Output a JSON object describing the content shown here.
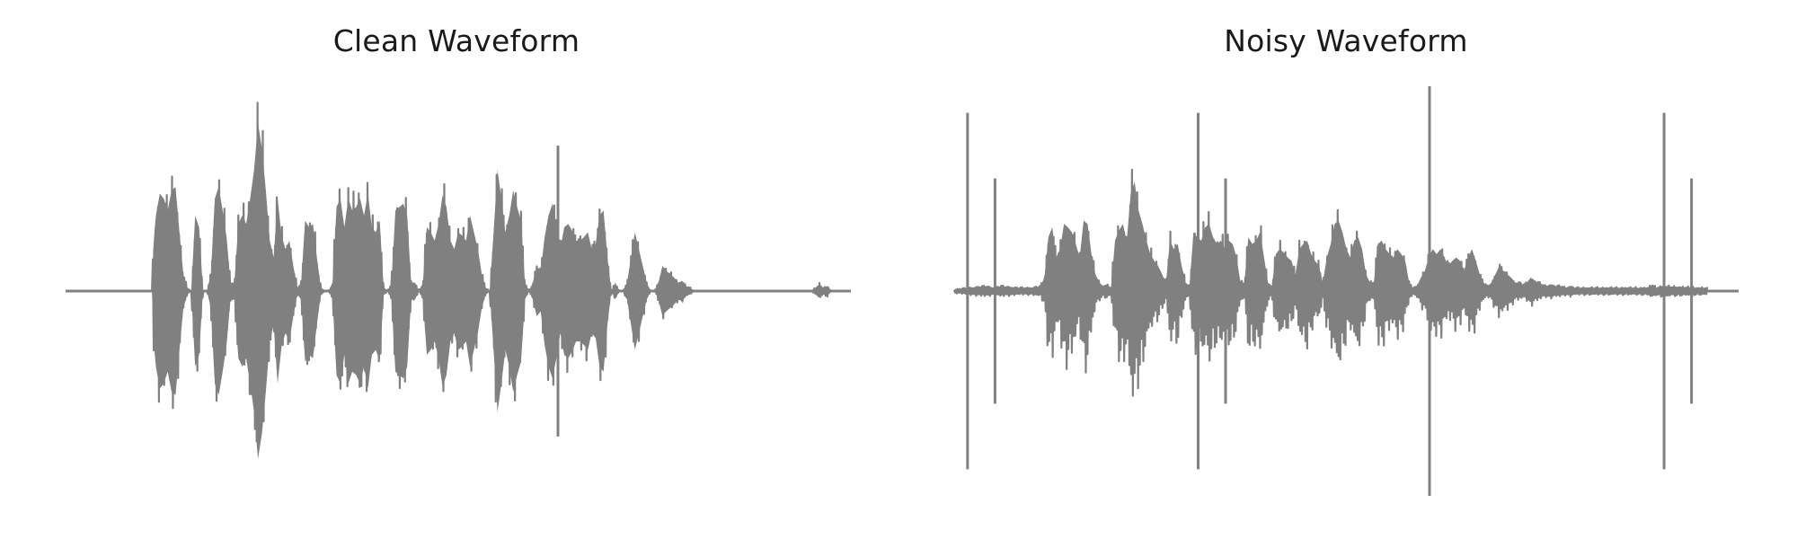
{
  "chart_data": [
    {
      "type": "line",
      "title": "Clean Waveform",
      "xlabel": "",
      "ylabel": "",
      "axes_visible": false,
      "grid": false,
      "line_color": "#808080",
      "ylim": [
        -1.0,
        1.0
      ],
      "envelope": {
        "x": [
          0.0,
          0.11,
          0.112,
          0.115,
          0.12,
          0.125,
          0.13,
          0.135,
          0.14,
          0.145,
          0.15,
          0.155,
          0.16,
          0.165,
          0.17,
          0.175,
          0.18,
          0.185,
          0.19,
          0.195,
          0.2,
          0.205,
          0.21,
          0.215,
          0.22,
          0.225,
          0.23,
          0.235,
          0.24,
          0.245,
          0.25,
          0.255,
          0.26,
          0.265,
          0.27,
          0.275,
          0.28,
          0.285,
          0.29,
          0.295,
          0.3,
          0.305,
          0.31,
          0.315,
          0.32,
          0.325,
          0.33,
          0.335,
          0.34,
          0.345,
          0.35,
          0.355,
          0.36,
          0.365,
          0.37,
          0.375,
          0.38,
          0.385,
          0.39,
          0.395,
          0.4,
          0.405,
          0.41,
          0.415,
          0.42,
          0.425,
          0.43,
          0.435,
          0.44,
          0.445,
          0.45,
          0.455,
          0.46,
          0.465,
          0.47,
          0.475,
          0.48,
          0.485,
          0.49,
          0.495,
          0.5,
          0.505,
          0.51,
          0.515,
          0.52,
          0.525,
          0.53,
          0.535,
          0.54,
          0.545,
          0.55,
          0.555,
          0.56,
          0.565,
          0.57,
          0.575,
          0.58,
          0.585,
          0.59,
          0.595,
          0.6,
          0.605,
          0.61,
          0.615,
          0.62,
          0.625,
          0.63,
          0.635,
          0.64,
          0.645,
          0.65,
          0.655,
          0.66,
          0.665,
          0.67,
          0.675,
          0.68,
          0.685,
          0.69,
          0.695,
          0.7,
          0.705,
          0.71,
          0.715,
          0.72,
          0.725,
          0.73,
          0.735,
          0.74,
          0.745,
          0.75,
          0.755,
          0.76,
          0.765,
          0.77,
          0.775,
          0.78,
          0.785,
          0.79,
          0.795,
          0.8,
          0.805,
          0.81,
          0.815,
          0.82,
          0.825,
          0.83,
          0.835,
          0.84,
          0.845,
          0.85,
          0.855,
          0.86,
          0.865,
          0.87,
          0.875,
          0.88,
          0.885,
          0.89,
          0.895,
          0.9,
          0.95,
          0.96,
          0.965,
          0.97,
          0.975,
          1.0
        ],
        "amp": [
          0.0,
          0.0,
          0.3,
          0.45,
          0.58,
          0.55,
          0.48,
          0.6,
          0.62,
          0.35,
          0.1,
          0.02,
          0.0,
          0.45,
          0.38,
          0.0,
          0.0,
          0.1,
          0.55,
          0.62,
          0.48,
          0.32,
          0.05,
          0.05,
          0.4,
          0.45,
          0.4,
          0.55,
          0.72,
          1.0,
          0.85,
          0.6,
          0.3,
          0.2,
          0.55,
          0.33,
          0.25,
          0.3,
          0.15,
          0.02,
          0.05,
          0.42,
          0.38,
          0.4,
          0.2,
          0.02,
          0.0,
          0.0,
          0.05,
          0.5,
          0.55,
          0.38,
          0.55,
          0.48,
          0.5,
          0.55,
          0.45,
          0.58,
          0.38,
          0.35,
          0.42,
          0.02,
          0.0,
          0.05,
          0.48,
          0.5,
          0.52,
          0.45,
          0.05,
          0.05,
          0.0,
          0.05,
          0.38,
          0.35,
          0.3,
          0.4,
          0.57,
          0.5,
          0.3,
          0.25,
          0.35,
          0.33,
          0.3,
          0.45,
          0.35,
          0.25,
          0.1,
          0.02,
          0.0,
          0.35,
          0.72,
          0.55,
          0.35,
          0.45,
          0.6,
          0.5,
          0.42,
          0.05,
          0.0,
          0.05,
          0.15,
          0.12,
          0.32,
          0.45,
          0.52,
          0.4,
          0.25,
          0.38,
          0.4,
          0.36,
          0.3,
          0.3,
          0.32,
          0.35,
          0.25,
          0.28,
          0.45,
          0.48,
          0.2,
          0.0,
          0.05,
          0.0,
          0.0,
          0.05,
          0.2,
          0.35,
          0.25,
          0.15,
          0.05,
          0.0,
          0.0,
          0.05,
          0.15,
          0.12,
          0.1,
          0.08,
          0.05,
          0.06,
          0.03,
          0.02,
          0.0,
          0.0,
          0.0,
          0.0,
          0.0,
          0.0,
          0.0,
          0.0,
          0.0,
          0.0,
          0.0,
          0.0,
          0.0,
          0.0,
          0.0,
          0.0,
          0.0,
          0.0,
          0.0,
          0.0,
          0.0,
          0.0,
          0.04,
          0.02,
          0.03,
          0.0,
          0.0
        ],
        "spikes": [
          {
            "x": 0.627,
            "top": 0.71,
            "bottom": -0.71
          }
        ]
      }
    },
    {
      "type": "line",
      "title": "Noisy Waveform",
      "xlabel": "",
      "ylabel": "",
      "axes_visible": false,
      "grid": false,
      "line_color": "#808080",
      "ylim": [
        -1.0,
        1.0
      ],
      "envelope": {
        "x": [
          0.0,
          0.02,
          0.04,
          0.05,
          0.06,
          0.08,
          0.1,
          0.11,
          0.115,
          0.12,
          0.125,
          0.13,
          0.135,
          0.14,
          0.145,
          0.15,
          0.155,
          0.16,
          0.165,
          0.17,
          0.175,
          0.18,
          0.185,
          0.19,
          0.195,
          0.2,
          0.205,
          0.21,
          0.215,
          0.22,
          0.225,
          0.23,
          0.235,
          0.24,
          0.245,
          0.25,
          0.255,
          0.26,
          0.265,
          0.27,
          0.275,
          0.28,
          0.285,
          0.29,
          0.295,
          0.3,
          0.305,
          0.31,
          0.315,
          0.32,
          0.325,
          0.33,
          0.335,
          0.34,
          0.345,
          0.35,
          0.355,
          0.36,
          0.365,
          0.37,
          0.375,
          0.38,
          0.385,
          0.39,
          0.395,
          0.4,
          0.405,
          0.41,
          0.415,
          0.42,
          0.425,
          0.43,
          0.435,
          0.44,
          0.445,
          0.45,
          0.455,
          0.46,
          0.465,
          0.47,
          0.475,
          0.48,
          0.485,
          0.49,
          0.495,
          0.5,
          0.505,
          0.51,
          0.515,
          0.52,
          0.525,
          0.53,
          0.535,
          0.54,
          0.545,
          0.55,
          0.555,
          0.56,
          0.565,
          0.57,
          0.575,
          0.58,
          0.585,
          0.59,
          0.595,
          0.6,
          0.605,
          0.61,
          0.615,
          0.62,
          0.625,
          0.63,
          0.635,
          0.64,
          0.645,
          0.65,
          0.655,
          0.66,
          0.665,
          0.67,
          0.675,
          0.68,
          0.685,
          0.69,
          0.695,
          0.7,
          0.705,
          0.71,
          0.715,
          0.72,
          0.725,
          0.73,
          0.735,
          0.74,
          0.745,
          0.75,
          0.755,
          0.76,
          0.765,
          0.77,
          0.775,
          0.78,
          0.785,
          0.79,
          0.795,
          0.8,
          0.805,
          0.81,
          0.815,
          0.82,
          0.825,
          0.83,
          0.835,
          0.84,
          0.845,
          0.85,
          0.855,
          0.86,
          0.865,
          0.87,
          0.875,
          0.88,
          0.885,
          0.89,
          0.895,
          0.9,
          0.95,
          0.96,
          0.965,
          0.97,
          0.975,
          1.0
        ],
        "amp": [
          0.01,
          0.02,
          0.03,
          0.02,
          0.03,
          0.02,
          0.02,
          0.03,
          0.08,
          0.32,
          0.38,
          0.2,
          0.25,
          0.4,
          0.38,
          0.35,
          0.28,
          0.2,
          0.42,
          0.4,
          0.22,
          0.1,
          0.05,
          0.03,
          0.04,
          0.02,
          0.3,
          0.36,
          0.4,
          0.3,
          0.58,
          0.65,
          0.48,
          0.4,
          0.3,
          0.22,
          0.18,
          0.15,
          0.1,
          0.05,
          0.3,
          0.25,
          0.28,
          0.15,
          0.05,
          0.03,
          0.35,
          0.32,
          0.3,
          0.38,
          0.4,
          0.32,
          0.28,
          0.3,
          0.25,
          0.3,
          0.28,
          0.2,
          0.05,
          0.05,
          0.32,
          0.28,
          0.3,
          0.35,
          0.2,
          0.05,
          0.03,
          0.22,
          0.25,
          0.23,
          0.2,
          0.18,
          0.1,
          0.25,
          0.28,
          0.3,
          0.22,
          0.18,
          0.15,
          0.05,
          0.2,
          0.28,
          0.4,
          0.42,
          0.35,
          0.25,
          0.2,
          0.3,
          0.32,
          0.25,
          0.1,
          0.05,
          0.05,
          0.28,
          0.3,
          0.25,
          0.22,
          0.2,
          0.25,
          0.22,
          0.18,
          0.05,
          0.02,
          0.03,
          0.08,
          0.12,
          0.2,
          0.25,
          0.22,
          0.25,
          0.2,
          0.15,
          0.18,
          0.2,
          0.18,
          0.12,
          0.2,
          0.25,
          0.18,
          0.1,
          0.05,
          0.03,
          0.05,
          0.1,
          0.15,
          0.12,
          0.1,
          0.08,
          0.05,
          0.05,
          0.04,
          0.05,
          0.08,
          0.06,
          0.05,
          0.04,
          0.03,
          0.04,
          0.03,
          0.03,
          0.03,
          0.02,
          0.03,
          0.02,
          0.02,
          0.02,
          0.02,
          0.02,
          0.02,
          0.02,
          0.02,
          0.02,
          0.02,
          0.02,
          0.02,
          0.02,
          0.02,
          0.02,
          0.02,
          0.02,
          0.02,
          0.02,
          0.02,
          0.04,
          0.02,
          0.03,
          0.02,
          0.02
        ],
        "spikes": [
          {
            "x": 0.017,
            "top": 0.87,
            "bottom": -0.87
          },
          {
            "x": 0.052,
            "top": 0.55,
            "bottom": -0.55
          },
          {
            "x": 0.311,
            "top": 0.87,
            "bottom": -0.87
          },
          {
            "x": 0.346,
            "top": 0.55,
            "bottom": -0.55
          },
          {
            "x": 0.606,
            "top": 1.0,
            "bottom": -1.0
          },
          {
            "x": 0.905,
            "top": 0.87,
            "bottom": -0.87
          },
          {
            "x": 0.94,
            "top": 0.55,
            "bottom": -0.55
          }
        ]
      }
    }
  ]
}
